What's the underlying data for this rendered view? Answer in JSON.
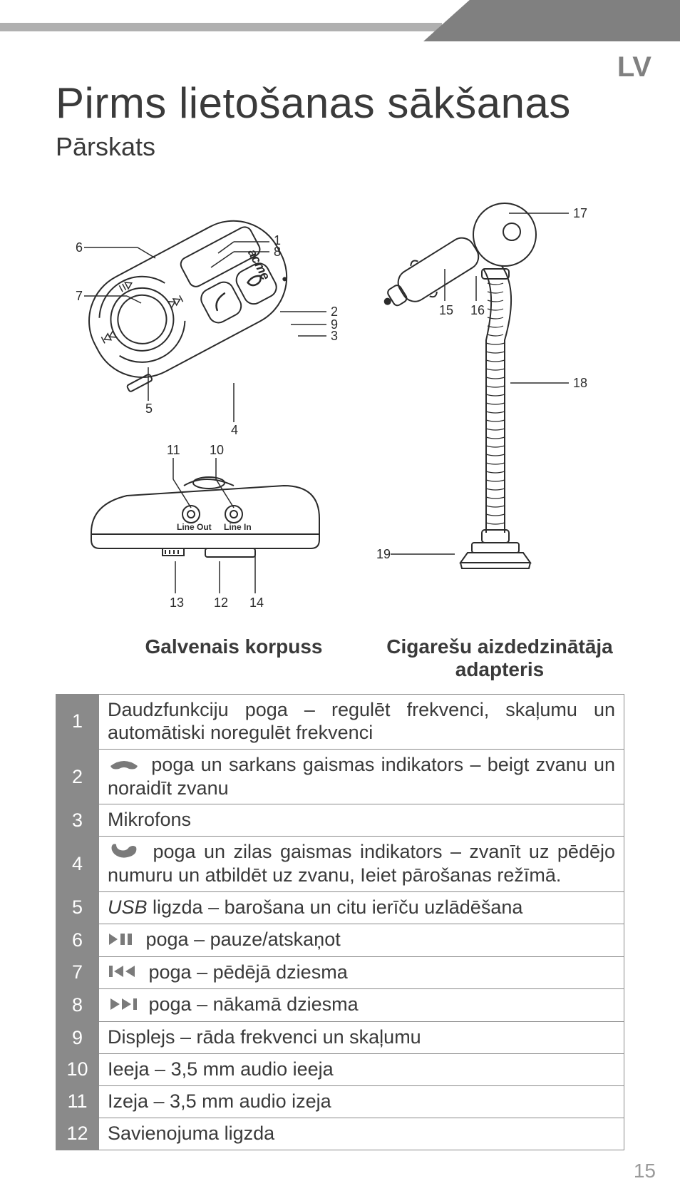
{
  "lang_code": "LV",
  "title": "Pirms lietošanas sākšanas",
  "subtitle": "Pārskats",
  "page_number": "15",
  "diagram": {
    "callouts_main_top": [
      "1",
      "2",
      "3",
      "4",
      "5",
      "6",
      "7",
      "8",
      "9"
    ],
    "callouts_main_side": [
      "10",
      "11",
      "12",
      "13",
      "14"
    ],
    "callouts_adapter": [
      "15",
      "16",
      "17",
      "18",
      "19"
    ],
    "port_labels": {
      "line_out": "Line Out",
      "line_in": "Line In"
    },
    "brand": "acme",
    "label_left": "Galvenais korpuss",
    "label_right": "Cigarešu aizdedzinātāja adapteris"
  },
  "table": {
    "rows": [
      {
        "n": "1",
        "text": "Daudzfunkciju poga – regulēt frekvenci, skaļumu un automātiski noregulēt frekvenci"
      },
      {
        "n": "2",
        "icon": "hangup",
        "text": " poga un sarkans gaismas indikators – beigt zvanu un noraidīt zvanu"
      },
      {
        "n": "3",
        "text": "Mikrofons"
      },
      {
        "n": "4",
        "icon": "pickup",
        "text": " poga un zilas gaismas indikators – zvanīt uz pēdējo numuru un atbildēt uz zvanu, Ieiet pārošanas režīmā."
      },
      {
        "n": "5",
        "italic_prefix": "USB",
        "text": " ligzda – barošana un citu ierīču uzlādēšana"
      },
      {
        "n": "6",
        "icon": "playpause",
        "text": " poga – pauze/atskaņot"
      },
      {
        "n": "7",
        "icon": "prev",
        "text": " poga – pēdējā dziesma"
      },
      {
        "n": "8",
        "icon": "next",
        "text": " poga – nākamā dziesma"
      },
      {
        "n": "9",
        "text": "Displejs – rāda frekvenci un skaļumu"
      },
      {
        "n": "10",
        "text": "Ieeja – 3,5 mm audio ieeja"
      },
      {
        "n": "11",
        "text": "Izeja – 3,5 mm audio izeja"
      },
      {
        "n": "12",
        "text": "Savienojuma ligzda"
      }
    ]
  },
  "colors": {
    "line": "#2b2b2b",
    "gray": "#808080",
    "table_head": "#8a8a8a"
  }
}
